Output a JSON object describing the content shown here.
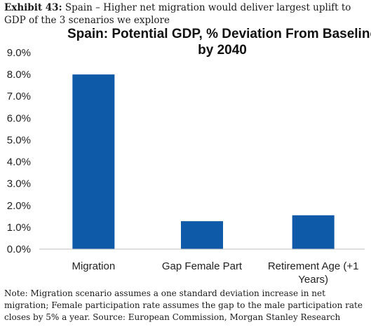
{
  "header": {
    "exhibit_label": "Exhibit 43:",
    "exhibit_text": " Spain – Higher net migration would deliver largest uplift to GDP of the 3 scenarios we explore"
  },
  "chart_data": {
    "type": "bar",
    "title_lines": [
      "Spain: Potential GDP, % Deviation From Baseline",
      "by 2040"
    ],
    "categories": [
      "Migration",
      "Gap Female Part",
      "Retirement Age (+1 Years)"
    ],
    "category_lines": [
      [
        "Migration"
      ],
      [
        "Gap Female Part"
      ],
      [
        "Retirement Age (+1",
        "Years)"
      ]
    ],
    "values": [
      8.0,
      1.28,
      1.55
    ],
    "ylim": [
      0,
      9
    ],
    "yticks": [
      "0.0%",
      "1.0%",
      "2.0%",
      "3.0%",
      "4.0%",
      "5.0%",
      "6.0%",
      "7.0%",
      "8.0%",
      "9.0%"
    ],
    "grid": false,
    "bar_color": "#0f5aa8"
  },
  "footer": {
    "note": "Note: Migration scenario assumes a one standard deviation increase in net migration; Female participation rate assumes the gap to the male participation rate closes by 5% a year. Source: European Commission, Morgan Stanley Research"
  }
}
